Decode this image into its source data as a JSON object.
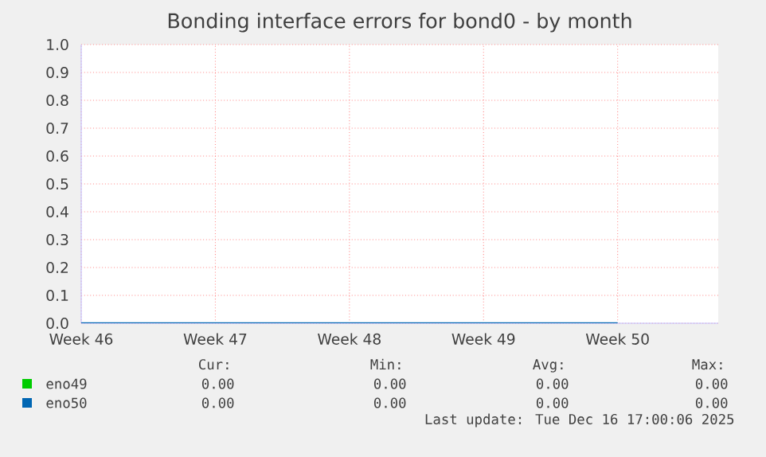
{
  "chart_data": {
    "type": "line",
    "title": "Bonding interface errors for bond0 - by month",
    "categories": [
      "Week 46",
      "Week 47",
      "Week 48",
      "Week 49",
      "Week 50"
    ],
    "ylim": [
      0,
      1.0
    ],
    "yticks": [
      {
        "value": 0,
        "label": "0.0"
      },
      {
        "value": 0.1,
        "label": "0.1"
      },
      {
        "value": 0.2,
        "label": "0.2"
      },
      {
        "value": 0.3,
        "label": "0.3"
      },
      {
        "value": 0.4,
        "label": "0.4"
      },
      {
        "value": 0.5,
        "label": "0.5"
      },
      {
        "value": 0.6,
        "label": "0.6"
      },
      {
        "value": 0.7,
        "label": "0.7"
      },
      {
        "value": 0.8,
        "label": "0.8"
      },
      {
        "value": 0.9,
        "label": "0.9"
      },
      {
        "value": 1.0,
        "label": "1.0"
      }
    ],
    "grid": true,
    "legend": "bottom",
    "marker": "none",
    "line_style": "solid",
    "series": [
      {
        "name": "eno49",
        "color": "#00cc00",
        "values": [
          null,
          null,
          null,
          null,
          null
        ]
      },
      {
        "name": "eno50",
        "color": "#0066b3",
        "values": [
          0,
          0,
          0,
          0,
          0
        ]
      }
    ],
    "annotations": [
      "Cur:",
      "Min:",
      "Avg:",
      "Max:",
      "0.00",
      "0.00",
      "0.00",
      "0.00",
      "0.00",
      "0.00",
      "0.00",
      "0.00",
      "Last update: Tue Dec 16 17:00:06 2025"
    ]
  }
}
